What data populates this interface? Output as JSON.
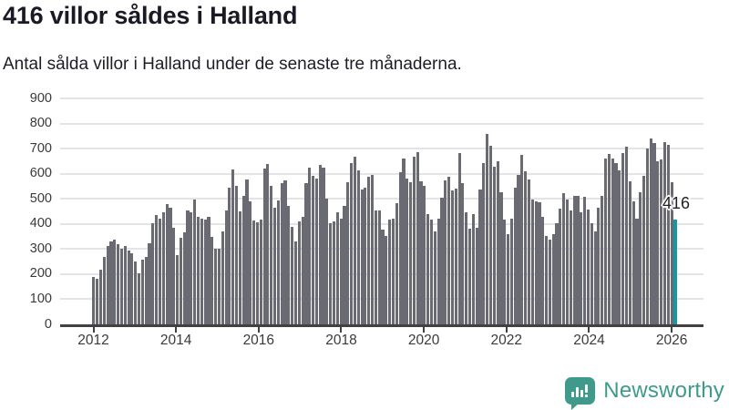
{
  "header": {
    "title": "416 villor såldes i Halland",
    "subtitle": "Antal sålda villor i Halland under de senaste tre månaderna."
  },
  "chart_data": {
    "type": "bar",
    "title": "416 villor såldes i Halland",
    "subtitle": "Antal sålda villor i Halland under de senaste tre månaderna.",
    "ylabel": "",
    "xlabel": "",
    "ylim": [
      0,
      900
    ],
    "y_ticks": [
      0,
      100,
      200,
      300,
      400,
      500,
      600,
      700,
      800,
      900
    ],
    "x_tick_labels": [
      "2012",
      "2014",
      "2016",
      "2018",
      "2020",
      "2022",
      "2024",
      "2026"
    ],
    "grid": true,
    "frequency": "monthly",
    "start_month": "2012-01",
    "annotation": {
      "label": "416",
      "value": 416
    },
    "highlight_last_bar": true,
    "colors": {
      "bar": "#6a6a72",
      "highlight": "#1598a0",
      "grid": "#e4e4e6",
      "axis": "#414141",
      "tick_text": "#3a3a3a"
    },
    "values": [
      190,
      182,
      216,
      270,
      313,
      330,
      338,
      318,
      300,
      312,
      294,
      282,
      251,
      204,
      257,
      270,
      324,
      404,
      434,
      421,
      446,
      479,
      465,
      385,
      276,
      343,
      367,
      455,
      446,
      497,
      428,
      422,
      416,
      430,
      349,
      302,
      300,
      371,
      455,
      546,
      617,
      552,
      449,
      513,
      578,
      491,
      413,
      407,
      416,
      621,
      639,
      552,
      465,
      493,
      562,
      574,
      471,
      389,
      330,
      410,
      430,
      562,
      623,
      593,
      580,
      635,
      626,
      501,
      404,
      410,
      446,
      420,
      473,
      565,
      644,
      666,
      613,
      538,
      544,
      587,
      595,
      452,
      452,
      376,
      352,
      416,
      422,
      483,
      605,
      662,
      580,
      565,
      666,
      687,
      568,
      550,
      440,
      416,
      370,
      422,
      504,
      574,
      587,
      534,
      540,
      684,
      562,
      446,
      382,
      440,
      385,
      538,
      641,
      757,
      711,
      629,
      650,
      526,
      416,
      361,
      422,
      544,
      595,
      674,
      611,
      577,
      497,
      491,
      485,
      428,
      351,
      337,
      361,
      404,
      461,
      522,
      497,
      455,
      511,
      511,
      445,
      507,
      459,
      404,
      371,
      465,
      511,
      660,
      678,
      662,
      641,
      613,
      684,
      709,
      568,
      489,
      422,
      528,
      593,
      702,
      739,
      721,
      650,
      657,
      727,
      715,
      565,
      416
    ]
  },
  "footer": {
    "brand": "Newsworthy",
    "brand_color": "#3f9a8c",
    "logo_icon": "newsworthy-speech-bubble-bars-icon"
  }
}
